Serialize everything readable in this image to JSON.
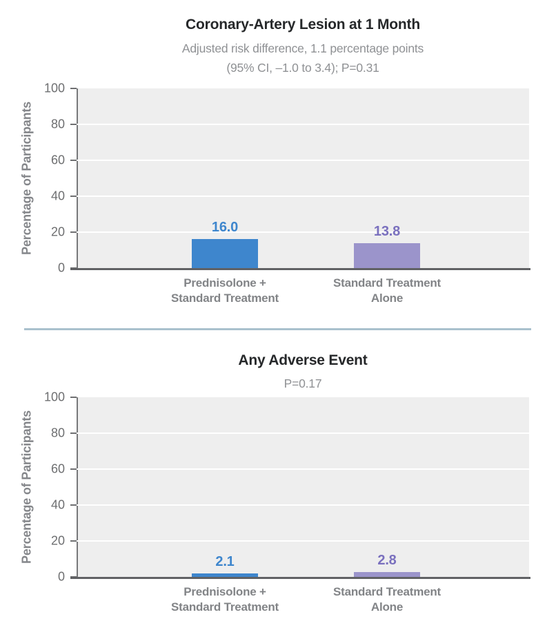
{
  "page": {
    "background": "#ffffff",
    "divider_color": "#a9c1cd"
  },
  "colors": {
    "prednisolone_blue": "#3e86cd",
    "standard_purple_bar": "#9b94cb",
    "standard_purple_label": "#7a70be",
    "plot_background": "#eeeeee",
    "axis_gray": "#6e6f71",
    "divider_blue_gray": "#a9c1cd"
  },
  "chart_data": [
    {
      "type": "bar",
      "title": "Coronary-Artery Lesion at 1 Month",
      "subtitle_lines": [
        "Adjusted risk difference, 1.1 percentage points",
        "(95% CI, –1.0 to 3.4); P=0.31"
      ],
      "ylabel": "Percentage of Participants",
      "xlabel": "",
      "ylim": [
        0,
        100
      ],
      "yticks": [
        0,
        20,
        40,
        60,
        80,
        100
      ],
      "grid": true,
      "legend": "none",
      "categories": [
        "Prednisolone +\nStandard Treatment",
        "Standard Treatment\nAlone"
      ],
      "values": [
        16.0,
        13.8
      ],
      "value_labels": [
        "16.0",
        "13.8"
      ],
      "bar_colors": [
        "#3e86cd",
        "#9b94cb"
      ],
      "value_label_colors": [
        "#3e86cd",
        "#7a70be"
      ]
    },
    {
      "type": "bar",
      "title": "Any Adverse Event",
      "subtitle_lines": [
        "P=0.17"
      ],
      "ylabel": "Percentage of Participants",
      "xlabel": "",
      "ylim": [
        0,
        100
      ],
      "yticks": [
        0,
        20,
        40,
        60,
        80,
        100
      ],
      "grid": true,
      "legend": "none",
      "categories": [
        "Prednisolone +\nStandard Treatment",
        "Standard Treatment\nAlone"
      ],
      "values": [
        2.1,
        2.8
      ],
      "value_labels": [
        "2.1",
        "2.8"
      ],
      "bar_colors": [
        "#3e86cd",
        "#9b94cb"
      ],
      "value_label_colors": [
        "#3e86cd",
        "#7a70be"
      ]
    }
  ]
}
